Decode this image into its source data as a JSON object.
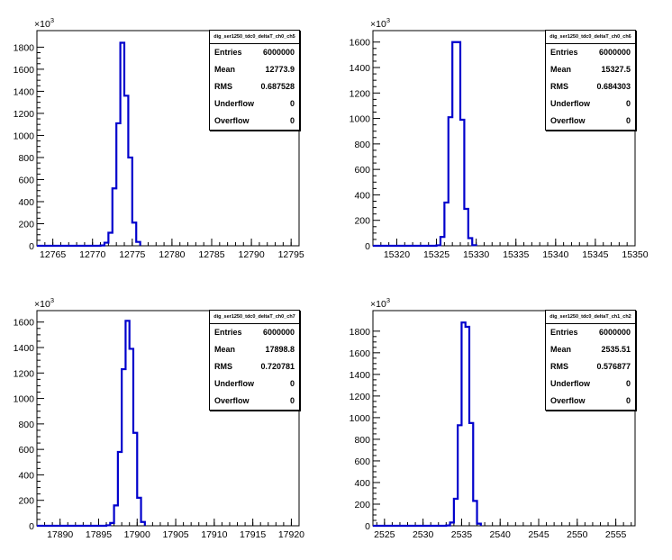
{
  "chart_data": [
    {
      "type": "histogram",
      "title": "dig_ser1250_tdc0_deltaT_ch0_ch5",
      "y_exponent": "3",
      "xlim": [
        12763,
        12796
      ],
      "ylim": [
        0,
        1950
      ],
      "xticks": [
        12765,
        12770,
        12775,
        12780,
        12785,
        12790,
        12795
      ],
      "yticks": [
        0,
        200,
        400,
        600,
        800,
        1000,
        1200,
        1400,
        1600,
        1800
      ],
      "bin_edges": [
        12770,
        12770.5,
        12771,
        12771.5,
        12772,
        12772.5,
        12773,
        12773.5,
        12774,
        12774.5,
        12775,
        12775.5,
        12776
      ],
      "values": [
        0,
        0,
        3,
        28,
        118,
        520,
        1110,
        1840,
        1360,
        800,
        210,
        35,
        2
      ],
      "stats": {
        "entries_label": "Entries",
        "entries": "6000000",
        "mean_label": "Mean",
        "mean": "12773.9",
        "rms_label": "RMS",
        "rms": "0.687528",
        "underflow_label": "Underflow",
        "underflow": "0",
        "overflow_label": "Overflow",
        "overflow": "0"
      }
    },
    {
      "type": "histogram",
      "title": "dig_ser1250_tdc0_deltaT_ch0_ch6",
      "y_exponent": "3",
      "xlim": [
        15317,
        15350
      ],
      "ylim": [
        0,
        1690
      ],
      "xticks": [
        15320,
        15325,
        15330,
        15335,
        15340,
        15345,
        15350
      ],
      "yticks": [
        0,
        200,
        400,
        600,
        800,
        1000,
        1200,
        1400,
        1600
      ],
      "bin_edges": [
        15324,
        15324.5,
        15325,
        15325.5,
        15326,
        15326.5,
        15327,
        15327.5,
        15328,
        15328.5,
        15329,
        15329.5,
        15330
      ],
      "values": [
        0,
        0,
        4,
        70,
        340,
        1010,
        1600,
        1600,
        990,
        290,
        60,
        5,
        0
      ],
      "stats": {
        "entries_label": "Entries",
        "entries": "6000000",
        "mean_label": "Mean",
        "mean": "15327.5",
        "rms_label": "RMS",
        "rms": "0.684303",
        "underflow_label": "Underflow",
        "underflow": "0",
        "overflow_label": "Overflow",
        "overflow": "0"
      }
    },
    {
      "type": "histogram",
      "title": "dig_ser1250_tdc0_deltaT_ch0_ch7",
      "y_exponent": "3",
      "xlim": [
        17887,
        17921
      ],
      "ylim": [
        0,
        1690
      ],
      "xticks": [
        17890,
        17895,
        17900,
        17905,
        17910,
        17915,
        17920
      ],
      "yticks": [
        0,
        200,
        400,
        600,
        800,
        1000,
        1200,
        1400,
        1600
      ],
      "bin_edges": [
        17895,
        17895.5,
        17896,
        17896.5,
        17897,
        17897.5,
        17898,
        17898.5,
        17899,
        17899.5,
        17900,
        17900.5,
        17901
      ],
      "values": [
        0,
        0,
        4,
        22,
        160,
        580,
        1230,
        1610,
        1390,
        730,
        220,
        30,
        2
      ],
      "stats": {
        "entries_label": "Entries",
        "entries": "6000000",
        "mean_label": "Mean",
        "mean": "17898.8",
        "rms_label": "RMS",
        "rms": "0.720781",
        "underflow_label": "Underflow",
        "underflow": "0",
        "overflow_label": "Overflow",
        "overflow": "0"
      }
    },
    {
      "type": "histogram",
      "title": "dig_ser1250_tdc0_deltaT_ch1_ch2",
      "y_exponent": "3",
      "xlim": [
        2523.5,
        2557.5
      ],
      "ylim": [
        0,
        1990
      ],
      "xticks": [
        2525,
        2530,
        2535,
        2540,
        2545,
        2550,
        2555
      ],
      "yticks": [
        0,
        200,
        400,
        600,
        800,
        1000,
        1200,
        1400,
        1600,
        1800
      ],
      "bin_edges": [
        2532,
        2532.5,
        2533,
        2533.5,
        2534,
        2534.5,
        2535,
        2535.5,
        2536,
        2536.5,
        2537,
        2537.5
      ],
      "values": [
        0,
        0,
        3,
        30,
        250,
        930,
        1880,
        1840,
        950,
        230,
        20,
        0
      ],
      "stats": {
        "entries_label": "Entries",
        "entries": "6000000",
        "mean_label": "Mean",
        "mean": "2535.51",
        "rms_label": "RMS",
        "rms": "0.576877",
        "underflow_label": "Underflow",
        "underflow": "0",
        "overflow_label": "Overflow",
        "overflow": "0"
      }
    }
  ]
}
